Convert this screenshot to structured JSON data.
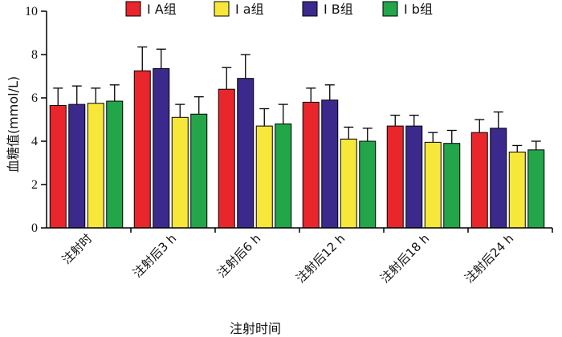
{
  "chart_data": {
    "type": "bar",
    "xlabel": "注射时间",
    "ylabel": "血糖值(mmol/L)",
    "ylim": [
      0,
      10
    ],
    "yticks": [
      0,
      2,
      4,
      6,
      8,
      10
    ],
    "categories": [
      "注射时",
      "注射后3 h",
      "注射后6 h",
      "注射后12 h",
      "注射后18 h",
      "注射后24 h"
    ],
    "series": [
      {
        "name": "Ⅰ A组",
        "color": "#e8262b",
        "values": [
          5.65,
          7.25,
          6.4,
          5.8,
          4.7,
          4.4
        ],
        "errors": [
          0.8,
          1.1,
          1.0,
          0.65,
          0.5,
          0.6
        ]
      },
      {
        "name": "Ⅰ B组",
        "color": "#3b2a8c",
        "values": [
          5.7,
          7.35,
          6.9,
          5.9,
          4.7,
          4.6
        ],
        "errors": [
          0.85,
          0.9,
          1.1,
          0.7,
          0.5,
          0.75
        ]
      },
      {
        "name": "Ⅰ a组",
        "color": "#f7e73a",
        "values": [
          5.75,
          5.1,
          4.7,
          4.1,
          3.95,
          3.5
        ],
        "errors": [
          0.7,
          0.6,
          0.8,
          0.55,
          0.45,
          0.3
        ]
      },
      {
        "name": "Ⅰ b组",
        "color": "#23a54a",
        "values": [
          5.85,
          5.25,
          4.8,
          4.0,
          3.9,
          3.6
        ],
        "errors": [
          0.75,
          0.8,
          0.9,
          0.6,
          0.6,
          0.4
        ]
      }
    ],
    "legend_order": [
      0,
      2,
      1,
      3
    ],
    "legend_position": "top",
    "grid": false
  }
}
